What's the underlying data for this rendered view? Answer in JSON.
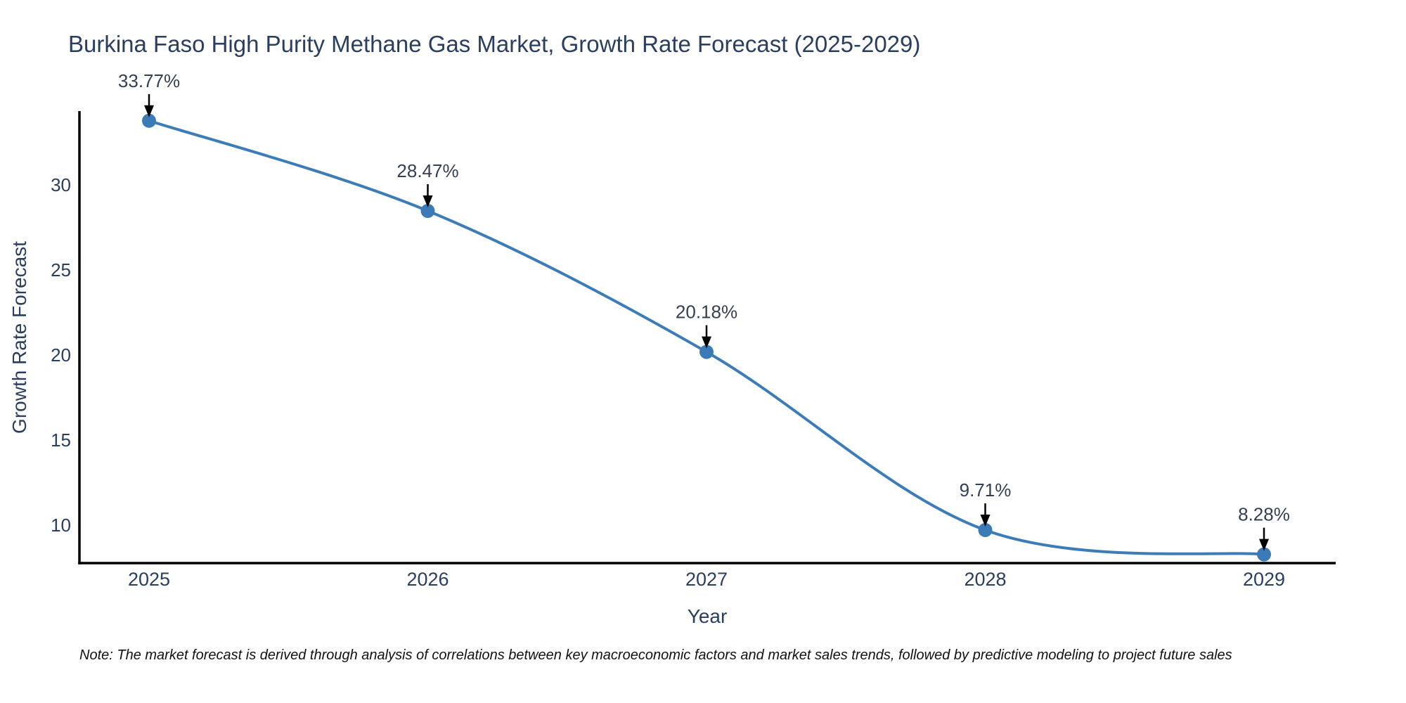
{
  "title": "Burkina Faso High Purity Methane Gas Market, Growth Rate Forecast (2025-2029)",
  "note": "Note: The market forecast is derived through analysis of correlations between key macroeconomic factors and market sales trends, followed by predictive modeling to project future sales",
  "chart_data": {
    "type": "line",
    "line_shape": "spline",
    "title": "Burkina Faso High Purity Methane Gas Market, Growth Rate Forecast (2025-2029)",
    "xlabel": "Year",
    "ylabel": "Growth Rate Forecast",
    "categories": [
      "2025",
      "2026",
      "2027",
      "2028",
      "2029"
    ],
    "values": [
      33.77,
      28.47,
      20.18,
      9.71,
      8.28
    ],
    "point_labels": [
      "33.77%",
      "28.47%",
      "20.18%",
      "9.71%",
      "8.28%"
    ],
    "yticks": [
      10,
      15,
      20,
      25,
      30
    ],
    "ylim": [
      7.8,
      34.4
    ],
    "grid": false,
    "legend_position": "none",
    "annotation_style": "arrow-down-to-point",
    "colors": {
      "line": "#3c7cb8",
      "marker": "#3a7ab6",
      "axis": "#000000",
      "title_text": "#2a3f5f",
      "tick_text": "#2a3f5f",
      "annotation_text": "#333f52",
      "arrow": "#000000",
      "background": "#ffffff"
    }
  }
}
